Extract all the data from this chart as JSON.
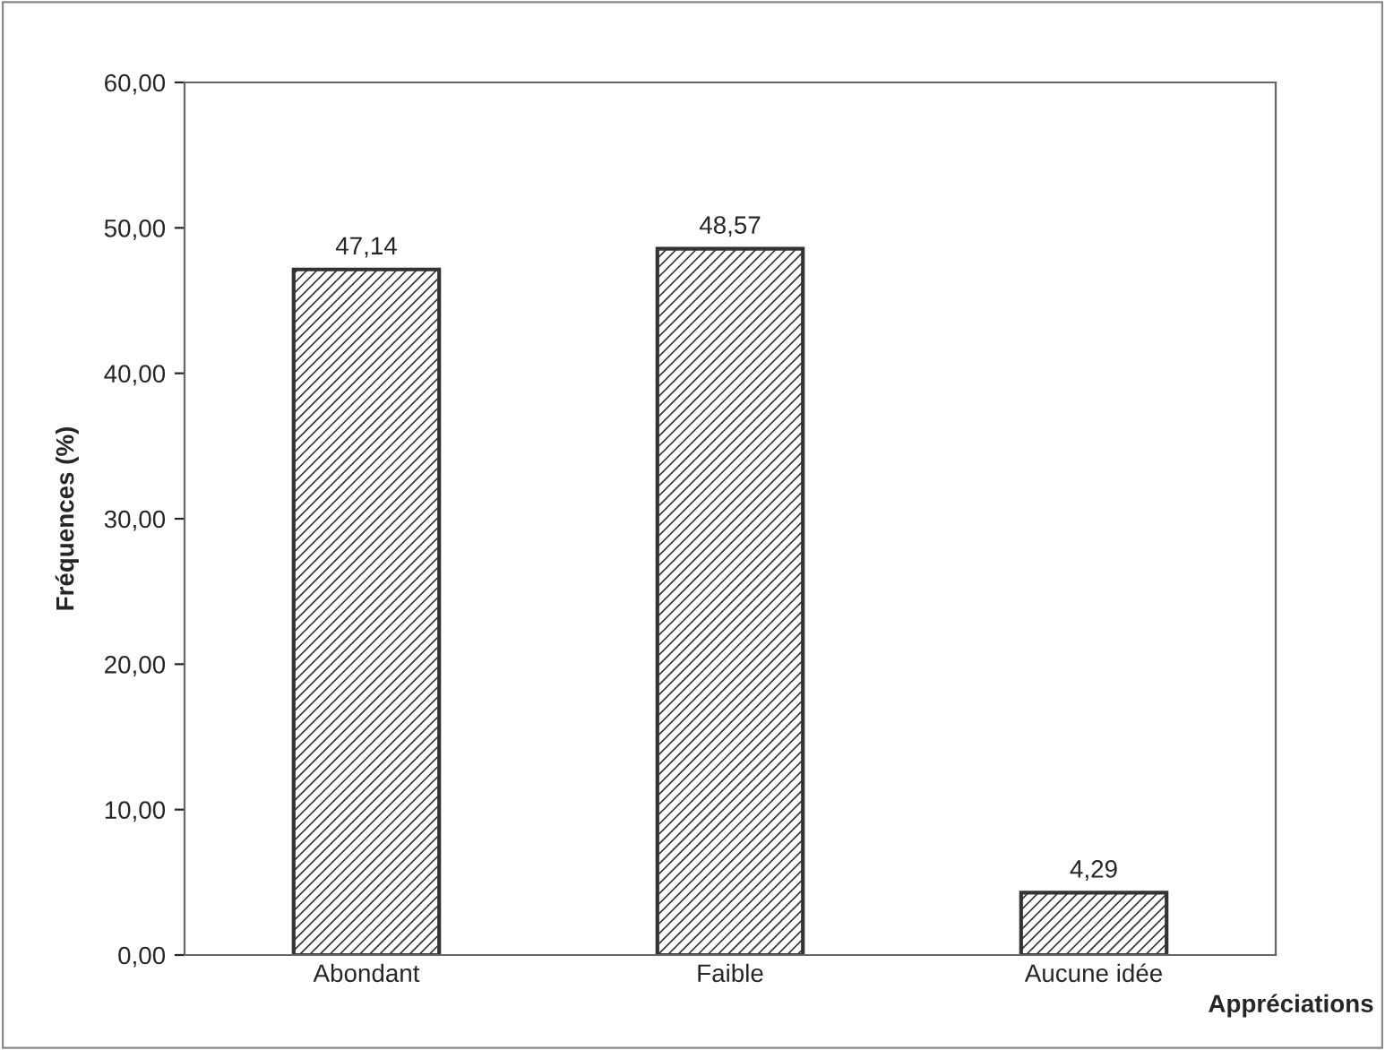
{
  "chart_data": {
    "type": "bar",
    "xlabel": "Appréciations",
    "ylabel": "Fréquences (%)",
    "categories": [
      "Abondant",
      "Faible",
      "Aucune idée"
    ],
    "values": [
      47.14,
      48.57,
      4.29
    ],
    "value_labels": [
      "47,14",
      "48,57",
      "4,29"
    ],
    "color": "#333333",
    "ylim": [
      0,
      60
    ],
    "yticks": [
      {
        "value": 0,
        "label": "0,00"
      },
      {
        "value": 10,
        "label": "10,00"
      },
      {
        "value": 20,
        "label": "20,00"
      },
      {
        "value": 30,
        "label": "30,00"
      },
      {
        "value": 40,
        "label": "40,00"
      },
      {
        "value": 50,
        "label": "50,00"
      },
      {
        "value": 60,
        "label": "60,00"
      }
    ],
    "grid": false,
    "legend": false
  }
}
